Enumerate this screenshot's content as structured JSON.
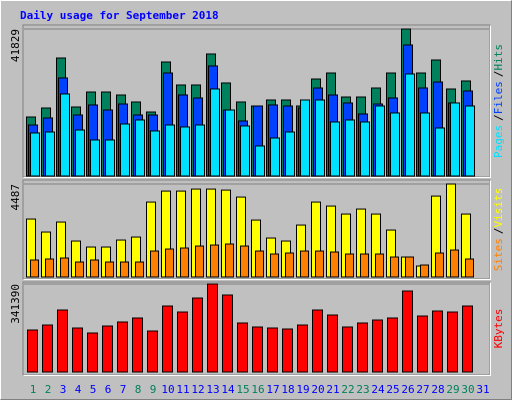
{
  "chart_data": {
    "type": "bar",
    "title": "Daily usage for September 2018",
    "categories": [
      "1",
      "2",
      "3",
      "4",
      "5",
      "6",
      "7",
      "8",
      "9",
      "10",
      "11",
      "12",
      "13",
      "14",
      "15",
      "16",
      "17",
      "18",
      "19",
      "20",
      "21",
      "22",
      "23",
      "24",
      "25",
      "26",
      "27",
      "28",
      "29",
      "30",
      "31"
    ],
    "category_colors": [
      "#00805c",
      "#00805c",
      "#0000ff",
      "#0000ff",
      "#0000ff",
      "#0000ff",
      "#0000ff",
      "#00805c",
      "#00805c",
      "#0000ff",
      "#0000ff",
      "#0000ff",
      "#0000ff",
      "#0000ff",
      "#00805c",
      "#00805c",
      "#0000ff",
      "#0000ff",
      "#0000ff",
      "#0000ff",
      "#0000ff",
      "#00805c",
      "#00805c",
      "#0000ff",
      "#0000ff",
      "#0000ff",
      "#0000ff",
      "#0000ff",
      "#00805c",
      "#00805c",
      "#0000ff"
    ],
    "legend_separator": "/",
    "panels": [
      {
        "ylim": [
          0,
          41829
        ],
        "yticks": [
          41829
        ],
        "series": [
          {
            "name": "Hits",
            "color": "#00805c",
            "values": [
              16790,
              19350,
              33580,
              19640,
              23900,
              23900,
              23050,
              21060,
              18210,
              32440,
              25900,
              25900,
              34720,
              26470,
              21060,
              19920,
              21630,
              21630,
              19920,
              27600,
              29310,
              22480,
              22480,
              25040,
              29310,
              41829,
              29310,
              33010,
              24760,
              27040,
              0
            ]
          },
          {
            "name": "Files",
            "color": "#0040ff",
            "values": [
              14510,
              16510,
              27890,
              17360,
              20210,
              18780,
              20490,
              17360,
              17360,
              29310,
              23050,
              22200,
              31310,
              18780,
              15650,
              19920,
              20210,
              19920,
              19350,
              25040,
              23050,
              20780,
              17650,
              20490,
              22200,
              37280,
              25040,
              26750,
              20780,
              24190,
              0
            ]
          },
          {
            "name": "Pages",
            "color": "#00e0ff",
            "values": [
              12240,
              12520,
              23340,
              13090,
              10250,
              10250,
              14800,
              15940,
              12810,
              14510,
              13950,
              14510,
              24760,
              18780,
              14230,
              8540,
              10810,
              12520,
              21630,
              21630,
              15370,
              15940,
              15370,
              19920,
              17930,
              29030,
              17930,
              13660,
              20780,
              19920,
              0
            ]
          }
        ]
      },
      {
        "ylim": [
          0,
          4487
        ],
        "yticks": [
          4487
        ],
        "series": [
          {
            "name": "Visits",
            "color": "#ffff00",
            "values": [
              2796,
              2169,
              2651,
              1735,
              1446,
              1446,
              1783,
              1928,
              3615,
              4145,
              4145,
              4242,
              4242,
              4193,
              3856,
              2747,
              1880,
              1735,
              2506,
              3615,
              3422,
              3037,
              3278,
              3037,
              2265,
              964,
              530,
              3904,
              4487,
              3037,
              0
            ]
          },
          {
            "name": "Sites",
            "color": "#ff8000",
            "values": [
              820,
              868,
              916,
              723,
              820,
              723,
              723,
              723,
              1253,
              1350,
              1398,
              1494,
              1542,
              1591,
              1494,
              1253,
              1109,
              1157,
              1253,
              1253,
              1205,
              1109,
              1109,
              1109,
              964,
              964,
              578,
              1157,
              1301,
              868,
              0
            ]
          }
        ]
      },
      {
        "ylim": [
          0,
          341390
        ],
        "yticks": [
          341390
        ],
        "series": [
          {
            "name": "KBytes",
            "color": "#ff0000",
            "values": [
              162900,
              182300,
              240500,
              170700,
              151300,
              178400,
              194000,
              209500,
              159000,
              256000,
              232700,
              287000,
              341390,
              298700,
              190100,
              174600,
              170700,
              166800,
              182300,
              240500,
              221100,
              174600,
              190100,
              201700,
              209500,
              314200,
              217200,
              236600,
              232700,
              256000,
              0
            ]
          }
        ]
      }
    ]
  }
}
